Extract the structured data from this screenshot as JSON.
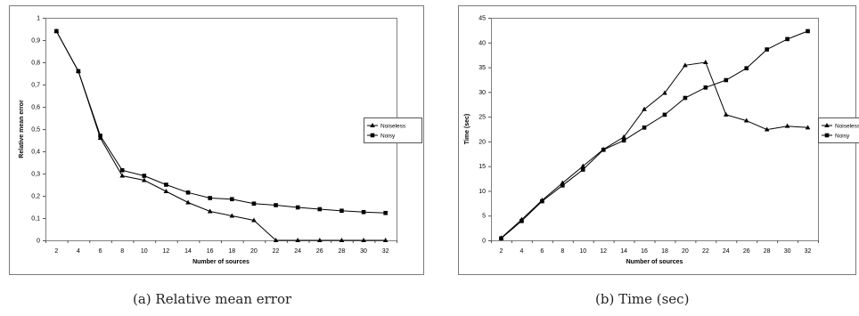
{
  "figures": [
    {
      "caption": "(a)  Relative mean error"
    },
    {
      "caption": "(b)  Time (sec)"
    }
  ],
  "chart_data": [
    {
      "type": "line",
      "title": "",
      "xlabel": "Number of sources",
      "ylabel": "Relative mean error",
      "categories": [
        "2",
        "4",
        "6",
        "8",
        "10",
        "12",
        "14",
        "16",
        "18",
        "20",
        "22",
        "24",
        "26",
        "28",
        "30",
        "32"
      ],
      "y_ticks": [
        "0",
        "0,1",
        "0,2",
        "0,3",
        "0,4",
        "0,5",
        "0,6",
        "0,7",
        "0,8",
        "0,9",
        "1"
      ],
      "ylim": [
        0,
        1
      ],
      "grid": false,
      "legend_position": "right",
      "series": [
        {
          "name": "Noiseless",
          "marker": "triangle",
          "values": [
            0.94,
            0.76,
            0.46,
            0.29,
            0.27,
            0.22,
            0.17,
            0.13,
            0.11,
            0.09,
            0.0,
            0.0,
            0.0,
            0.0,
            0.0,
            0.0
          ]
        },
        {
          "name": "Noisy",
          "marker": "square",
          "values": [
            0.94,
            0.76,
            0.47,
            0.315,
            0.29,
            0.25,
            0.215,
            0.19,
            0.185,
            0.165,
            0.158,
            0.148,
            0.14,
            0.133,
            0.127,
            0.123
          ]
        }
      ]
    },
    {
      "type": "line",
      "title": "",
      "xlabel": "Number of sources",
      "ylabel": "Time (sec)",
      "categories": [
        "2",
        "4",
        "6",
        "8",
        "10",
        "12",
        "14",
        "16",
        "18",
        "20",
        "22",
        "24",
        "26",
        "28",
        "30",
        "32"
      ],
      "y_ticks": [
        "0",
        "5",
        "10",
        "15",
        "20",
        "25",
        "30",
        "35",
        "40",
        "45"
      ],
      "ylim": [
        0,
        45
      ],
      "grid": false,
      "legend_position": "right",
      "series": [
        {
          "name": "Noiseless",
          "marker": "triangle",
          "values": [
            0.5,
            4.2,
            8.1,
            11.6,
            15.0,
            18.4,
            20.9,
            26.5,
            29.8,
            35.4,
            36.0,
            25.4,
            24.2,
            22.4,
            23.1,
            22.8
          ]
        },
        {
          "name": "Noisy",
          "marker": "square",
          "values": [
            0.4,
            3.9,
            7.9,
            11.1,
            14.3,
            18.3,
            20.2,
            22.8,
            25.4,
            28.8,
            30.9,
            32.4,
            34.8,
            38.6,
            40.7,
            42.3
          ]
        }
      ]
    }
  ]
}
